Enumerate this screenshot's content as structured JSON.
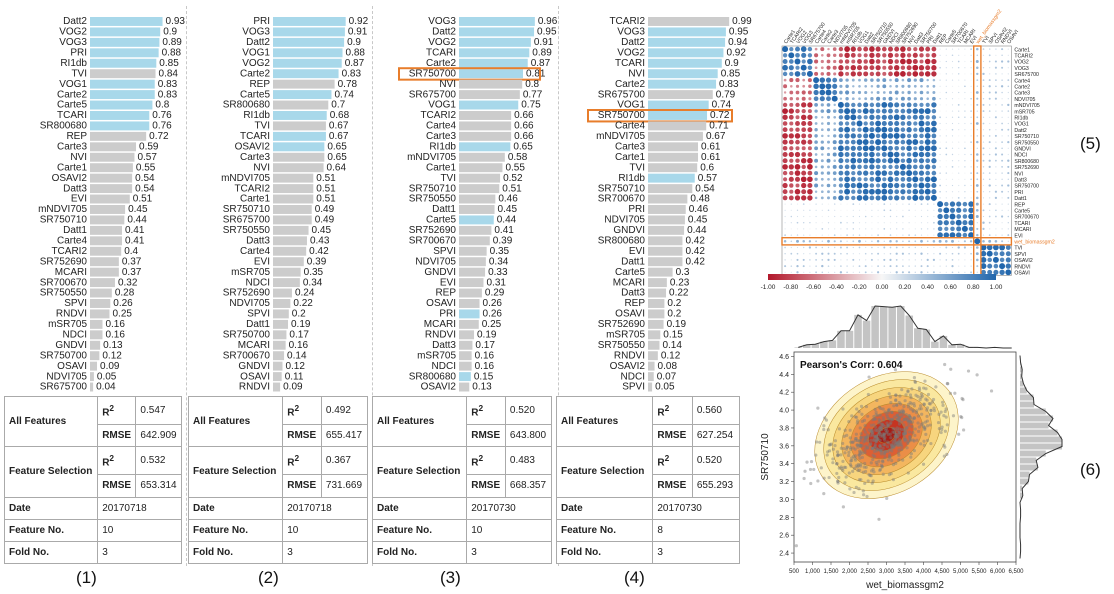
{
  "panel_tags": [
    "(1)",
    "(2)",
    "(3)",
    "(4)",
    "(5)",
    "(6)"
  ],
  "tables": [
    {
      "all_features": "All Features",
      "r2_label": "R",
      "r2_sup": "2",
      "rmse_label": "RMSE",
      "all_r2": "0.547",
      "all_rmse": "642.909",
      "feature_selection": "Feature Selection",
      "fs_r2": "0.532",
      "fs_rmse": "653.314",
      "date_label": "Date",
      "date": "20170718",
      "feature_no_label": "Feature No.",
      "feature_no": "10",
      "fold_no_label": "Fold No.",
      "fold_no": "3"
    },
    {
      "all_features": "All Features",
      "r2_label": "R",
      "r2_sup": "2",
      "rmse_label": "RMSE",
      "all_r2": "0.492",
      "all_rmse": "655.417",
      "feature_selection": "Feature Selection",
      "fs_r2": "0.367",
      "fs_rmse": "731.669",
      "date_label": "Date",
      "date": "20170718",
      "feature_no_label": "Feature No.",
      "feature_no": "10",
      "fold_no_label": "Fold No.",
      "fold_no": "3"
    },
    {
      "all_features": "All Features",
      "r2_label": "R",
      "r2_sup": "2",
      "rmse_label": "RMSE",
      "all_r2": "0.520",
      "all_rmse": "643.800",
      "feature_selection": "Feature Selection",
      "fs_r2": "0.483",
      "fs_rmse": "668.357",
      "date_label": "Date",
      "date": "20170730",
      "feature_no_label": "Feature No.",
      "feature_no": "10",
      "fold_no_label": "Fold No.",
      "fold_no": "3"
    },
    {
      "all_features": "All Features",
      "r2_label": "R",
      "r2_sup": "2",
      "rmse_label": "RMSE",
      "all_r2": "0.560",
      "all_rmse": "627.254",
      "feature_selection": "Feature Selection",
      "fs_r2": "0.520",
      "fs_rmse": "655.293",
      "date_label": "Date",
      "date": "20170730",
      "feature_no_label": "Feature No.",
      "feature_no": "8",
      "fold_no_label": "Fold No.",
      "fold_no": "3"
    }
  ],
  "colors": {
    "selected": "#a8d8ea",
    "unselected": "#cccccc",
    "highlight": "#e87d2b",
    "neg": "#b2182b",
    "pos": "#2166ac",
    "density": "#f1c65b"
  },
  "chart_data": [
    {
      "type": "bar",
      "orientation": "horizontal",
      "categories": [
        "Datt2",
        "VOG2",
        "VOG3",
        "PRI",
        "RI1db",
        "TVI",
        "VOG1",
        "Carte2",
        "Carte5",
        "TCARI",
        "SR800680",
        "REP",
        "Carte3",
        "NVI",
        "Carte1",
        "OSAVI2",
        "Datt3",
        "EVI",
        "mNDVI705",
        "SR750710",
        "Datt1",
        "Carte4",
        "TCARI2",
        "SR752690",
        "MCARI",
        "SR700670",
        "SR750550",
        "SPVI",
        "RNDVI",
        "mSR705",
        "NDCI",
        "GNDVI",
        "SR750700",
        "OSAVI",
        "NDVI705",
        "SR675700"
      ],
      "values": [
        0.93,
        0.9,
        0.89,
        0.88,
        0.85,
        0.84,
        0.83,
        0.83,
        0.8,
        0.76,
        0.76,
        0.72,
        0.59,
        0.57,
        0.55,
        0.54,
        0.54,
        0.51,
        0.45,
        0.44,
        0.41,
        0.41,
        0.4,
        0.37,
        0.37,
        0.32,
        0.28,
        0.26,
        0.25,
        0.16,
        0.16,
        0.13,
        0.12,
        0.09,
        0.05,
        0.04
      ],
      "selected": [
        "Datt2",
        "VOG2",
        "VOG3",
        "PRI",
        "RI1db",
        "VOG1",
        "Carte2",
        "Carte5",
        "TCARI",
        "SR800680"
      ],
      "highlighted": []
    },
    {
      "type": "bar",
      "orientation": "horizontal",
      "categories": [
        "PRI",
        "VOG3",
        "Datt2",
        "VOG1",
        "VOG2",
        "Carte2",
        "REP",
        "Carte5",
        "SR800680",
        "RI1db",
        "TVI",
        "TCARI",
        "OSAVI2",
        "Carte3",
        "NVI",
        "mNDVI705",
        "TCARI2",
        "Carte1",
        "SR750710",
        "SR675700",
        "SR750550",
        "Datt3",
        "Carte4",
        "EVI",
        "mSR705",
        "NDCI",
        "SR752690",
        "NDVI705",
        "SPVI",
        "Datt1",
        "SR750700",
        "MCARI",
        "SR700670",
        "GNDVI",
        "OSAVI",
        "RNDVI"
      ],
      "values": [
        0.92,
        0.91,
        0.9,
        0.88,
        0.87,
        0.83,
        0.78,
        0.74,
        0.7,
        0.68,
        0.67,
        0.67,
        0.65,
        0.65,
        0.64,
        0.51,
        0.51,
        0.51,
        0.49,
        0.49,
        0.45,
        0.43,
        0.42,
        0.39,
        0.35,
        0.34,
        0.24,
        0.22,
        0.2,
        0.19,
        0.17,
        0.16,
        0.14,
        0.12,
        0.11,
        0.09
      ],
      "selected": [
        "PRI",
        "VOG3",
        "Datt2",
        "VOG1",
        "VOG2",
        "Carte2",
        "Carte5",
        "RI1db",
        "TCARI",
        "OSAVI2"
      ],
      "highlighted": []
    },
    {
      "type": "bar",
      "orientation": "horizontal",
      "categories": [
        "VOG3",
        "Datt2",
        "VOG2",
        "TCARI",
        "Carte2",
        "SR750700",
        "NVI",
        "SR675700",
        "VOG1",
        "TCARI2",
        "Carte4",
        "Carte3",
        "RI1db",
        "mNDVI705",
        "Carte1",
        "TVI",
        "SR750710",
        "SR750550",
        "Datt1",
        "Carte5",
        "SR752690",
        "SR700670",
        "SPVI",
        "NDVI705",
        "GNDVI",
        "EVI",
        "REP",
        "OSAVI",
        "PRI",
        "MCARI",
        "RNDVI",
        "Datt3",
        "mSR705",
        "NDCI",
        "SR800680",
        "OSAVI2"
      ],
      "values": [
        0.96,
        0.95,
        0.91,
        0.89,
        0.87,
        0.81,
        0.8,
        0.77,
        0.75,
        0.66,
        0.66,
        0.66,
        0.65,
        0.58,
        0.55,
        0.52,
        0.51,
        0.46,
        0.45,
        0.44,
        0.41,
        0.39,
        0.35,
        0.34,
        0.33,
        0.31,
        0.29,
        0.26,
        0.26,
        0.25,
        0.19,
        0.17,
        0.16,
        0.16,
        0.15,
        0.13
      ],
      "selected": [
        "VOG3",
        "Datt2",
        "VOG2",
        "TCARI",
        "Carte2",
        "SR750700",
        "VOG1",
        "RI1db",
        "Carte5",
        "PRI",
        "SR800680"
      ],
      "highlighted": [
        "SR750700"
      ]
    },
    {
      "type": "bar",
      "orientation": "horizontal",
      "categories": [
        "TCARI2",
        "VOG3",
        "Datt2",
        "VOG2",
        "TCARI",
        "NVI",
        "Carte2",
        "SR675700",
        "VOG1",
        "SR750700",
        "Carte4",
        "mNDVI705",
        "Carte3",
        "Carte1",
        "TVI",
        "RI1db",
        "SR750710",
        "SR700670",
        "PRI",
        "NDVI705",
        "GNDVI",
        "SR800680",
        "EVI",
        "Datt1",
        "Carte5",
        "MCARI",
        "Datt3",
        "REP",
        "OSAVI",
        "SR752690",
        "mSR705",
        "SR750550",
        "RNDVI",
        "OSAVI2",
        "NDCI",
        "SPVI"
      ],
      "values": [
        0.99,
        0.95,
        0.94,
        0.92,
        0.9,
        0.85,
        0.83,
        0.79,
        0.74,
        0.72,
        0.71,
        0.67,
        0.61,
        0.61,
        0.6,
        0.57,
        0.54,
        0.48,
        0.46,
        0.45,
        0.44,
        0.42,
        0.42,
        0.42,
        0.3,
        0.23,
        0.22,
        0.2,
        0.2,
        0.19,
        0.15,
        0.14,
        0.12,
        0.08,
        0.07,
        0.05
      ],
      "selected": [
        "VOG3",
        "Datt2",
        "VOG2",
        "TCARI",
        "NVI",
        "Carte2",
        "VOG1",
        "SR750700",
        "RI1db"
      ],
      "highlighted": [
        "SR750700"
      ]
    },
    {
      "type": "heatmap",
      "labels": [
        "Carte1",
        "TCARI2",
        "VOG2",
        "VOG3",
        "SR675700",
        "Carte4",
        "Carte2",
        "Carte3",
        "NDVI705",
        "mNDVI705",
        "mSR705",
        "RI1db",
        "VOG1",
        "Datt2",
        "SR750710",
        "SR750550",
        "GNDVI",
        "NDCI",
        "SR800680",
        "SR752690",
        "NVI",
        "Datt3",
        "SR750700",
        "PRI",
        "Datt1",
        "REP",
        "Carte5",
        "SR700670",
        "TCARI",
        "MCARI",
        "EVI",
        "wet_biomassgm2",
        "TVI",
        "SPVI",
        "OSAVI2",
        "RNDVI",
        "OSAVI"
      ],
      "highlighted_label": "wet_biomassgm2",
      "colorbar_ticks": [
        "-1.00",
        "-0.80",
        "-0.60",
        "-0.40",
        "-0.20",
        "0.00",
        "0.20",
        "0.40",
        "0.60",
        "0.80",
        "1.00"
      ],
      "range": [
        -1,
        1
      ]
    },
    {
      "type": "scatter",
      "title": "Pearson's Corr: 0.604",
      "xlabel": "wet_biomassgm2",
      "ylabel": "SR750710",
      "x_ticks": [
        "500",
        "1,000",
        "1,500",
        "2,000",
        "2,500",
        "3,000",
        "3,500",
        "4,000",
        "4,500",
        "5,000",
        "5,500",
        "6,000",
        "6,500"
      ],
      "y_ticks": [
        "2.4",
        "2.6",
        "2.8",
        "3.0",
        "3.2",
        "3.4",
        "3.6",
        "3.8",
        "4.0",
        "4.2",
        "4.4",
        "4.6"
      ],
      "xlim": [
        500,
        6500
      ],
      "ylim": [
        2.3,
        4.65
      ]
    }
  ]
}
